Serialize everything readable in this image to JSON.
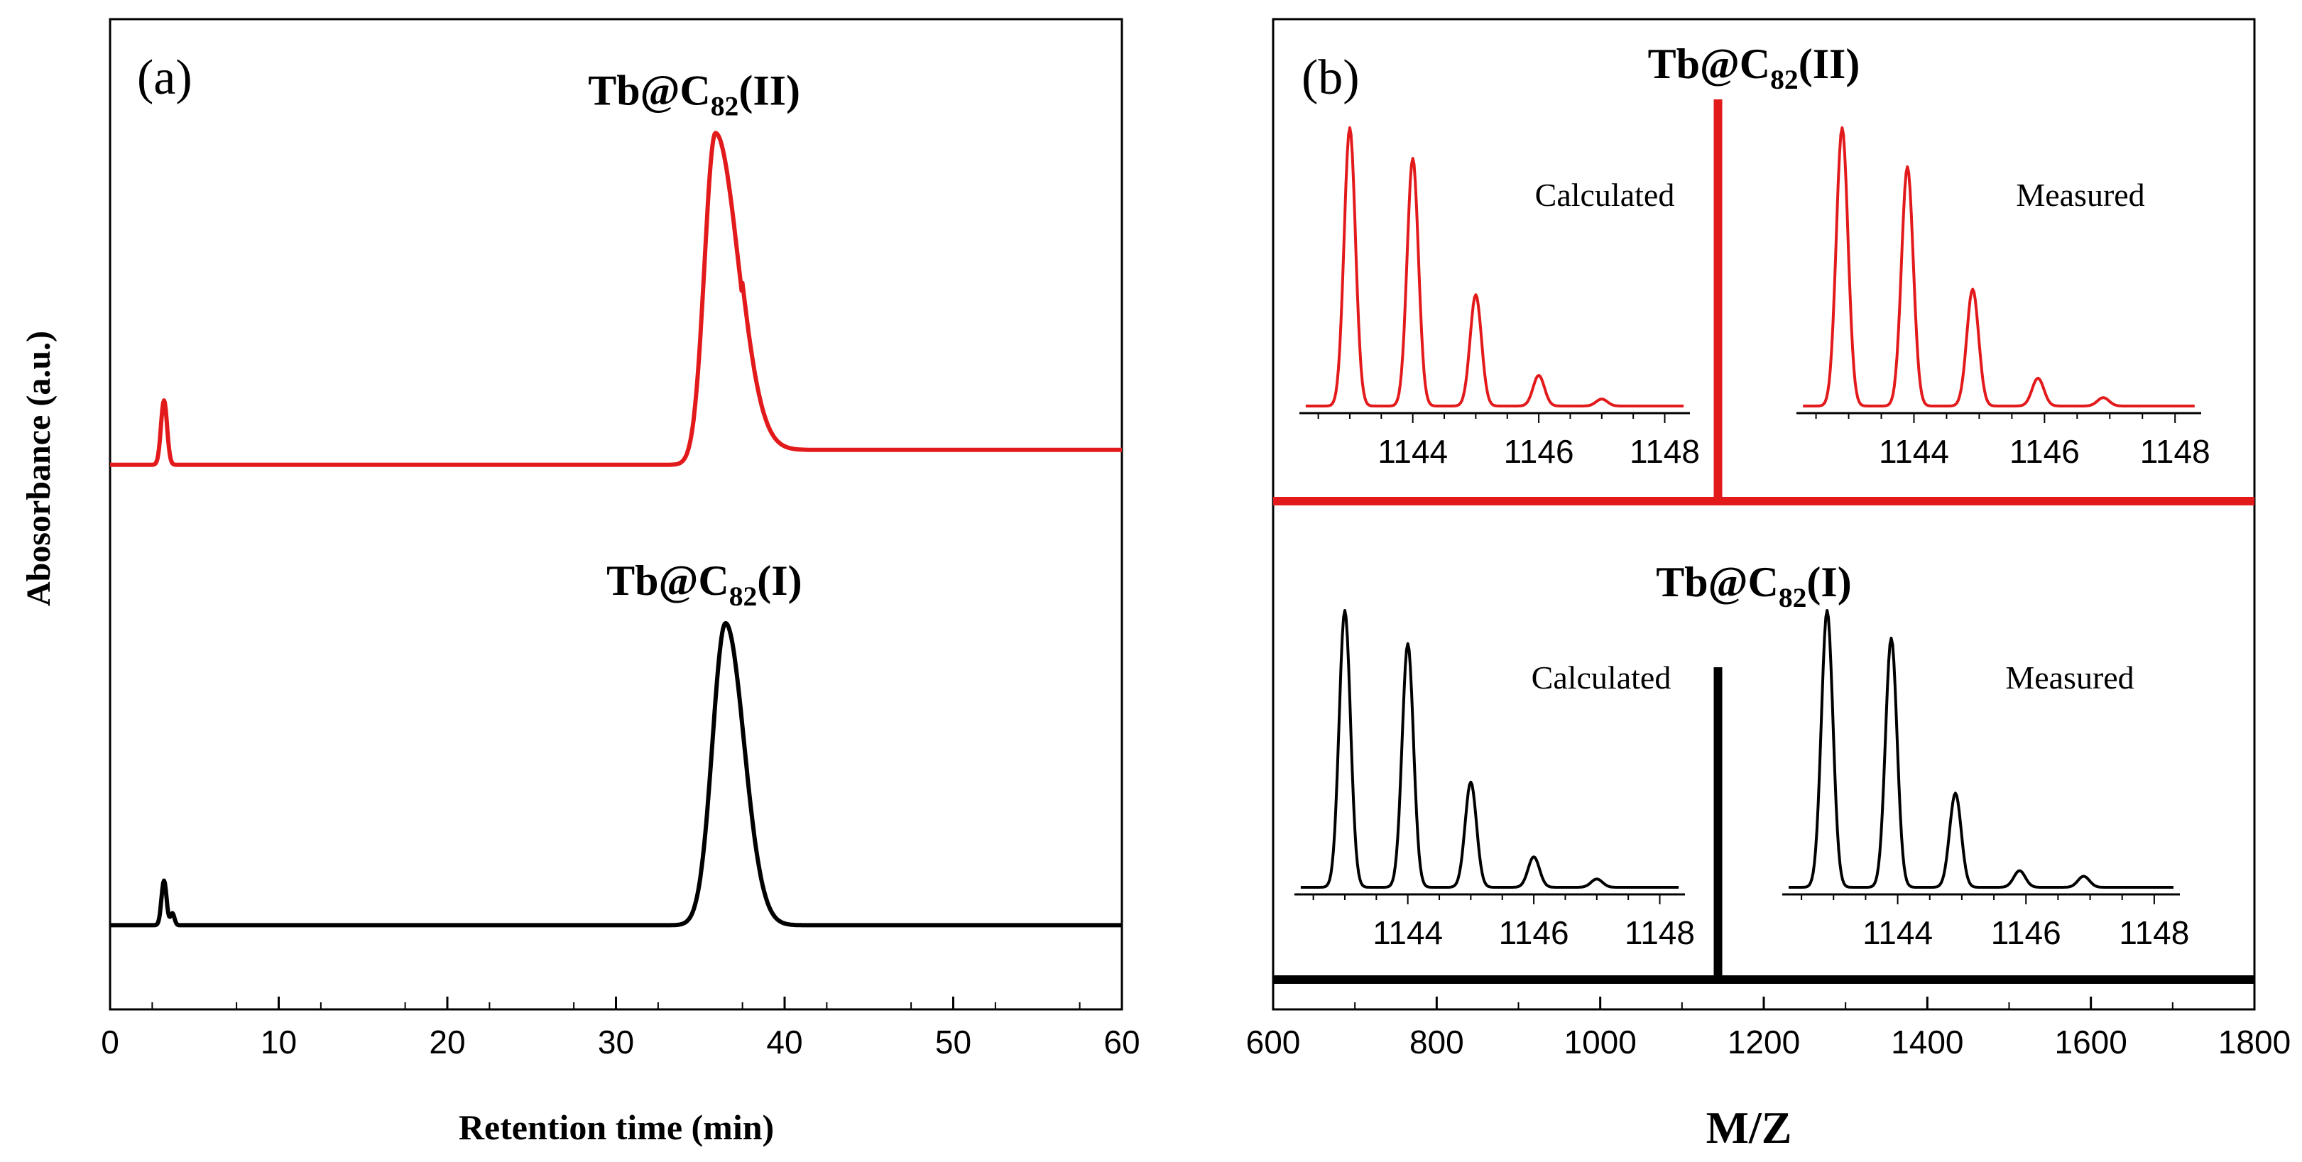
{
  "colors": {
    "red": "#e31a1c",
    "black": "#000000"
  },
  "chart_data": [
    {
      "panel": "(a)",
      "type": "line",
      "xlabel": "Retention time (min)",
      "ylabel": "Abosorbance (a.u.)",
      "xlim": [
        0,
        60
      ],
      "xticks": [
        0,
        10,
        20,
        30,
        40,
        50,
        60
      ],
      "ylim": [
        0,
        1
      ],
      "y_ticks_shown": false,
      "series": [
        {
          "name": "Tb@C82(II)",
          "label_main": "Tb@C",
          "label_sub": "82",
          "label_tail": "(II)",
          "color": "#e31a1c",
          "baseline": 0.55,
          "peaks": [
            {
              "x": 3.2,
              "height": 0.065,
              "width": 0.18
            },
            {
              "x": 35.9,
              "height": 0.335,
              "width": 0.65,
              "tail": 1.1
            }
          ],
          "step_after_peak": 0.015
        },
        {
          "name": "Tb@C82(I)",
          "label_main": "Tb@C",
          "label_sub": "82",
          "label_tail": "(I)",
          "color": "#000000",
          "baseline": 0.085,
          "peaks": [
            {
              "x": 3.2,
              "height": 0.045,
              "width": 0.15
            },
            {
              "x": 3.7,
              "height": 0.012,
              "width": 0.12
            },
            {
              "x": 36.5,
              "height": 0.305,
              "width": 0.78,
              "tail": 0.4
            }
          ],
          "step_after_peak": 0
        }
      ]
    },
    {
      "panel": "(b)",
      "type": "line",
      "xlabel": "M/Z",
      "xlim": [
        600,
        1800
      ],
      "xticks": [
        600,
        800,
        1000,
        1200,
        1400,
        1600,
        1800
      ],
      "y_ticks_shown": false,
      "series": [
        {
          "name": "Tb@C82(II)",
          "label_main": "Tb@C",
          "label_sub": "82",
          "label_tail": "(II)",
          "color": "#e31a1c",
          "peak_mz": 1144
        },
        {
          "name": "Tb@C82(I)",
          "label_main": "Tb@C",
          "label_sub": "82",
          "label_tail": "(I)",
          "color": "#000000",
          "peak_mz": 1144
        }
      ],
      "insets": [
        {
          "group": "Tb@C82(II)",
          "title": "Calculated",
          "color": "#e31a1c",
          "xlim": [
            1142.2,
            1148.4
          ],
          "xticks": [
            1144,
            1146,
            1148
          ],
          "peaks": [
            {
              "x": 1143.0,
              "y": 1.0
            },
            {
              "x": 1144.0,
              "y": 0.89
            },
            {
              "x": 1145.0,
              "y": 0.4
            },
            {
              "x": 1146.0,
              "y": 0.11
            },
            {
              "x": 1147.0,
              "y": 0.025
            }
          ]
        },
        {
          "group": "Tb@C82(II)",
          "title": "Measured",
          "color": "#e31a1c",
          "xlim": [
            1142.2,
            1148.4
          ],
          "xticks": [
            1144,
            1146,
            1148
          ],
          "peaks": [
            {
              "x": 1142.9,
              "y": 1.0
            },
            {
              "x": 1143.9,
              "y": 0.86
            },
            {
              "x": 1144.9,
              "y": 0.42
            },
            {
              "x": 1145.9,
              "y": 0.1
            },
            {
              "x": 1146.9,
              "y": 0.03
            }
          ]
        },
        {
          "group": "Tb@C82(I)",
          "title": "Calculated",
          "color": "#000000",
          "xlim": [
            1142.2,
            1148.4
          ],
          "xticks": [
            1144,
            1146,
            1148
          ],
          "peaks": [
            {
              "x": 1143.0,
              "y": 1.0
            },
            {
              "x": 1144.0,
              "y": 0.88
            },
            {
              "x": 1145.0,
              "y": 0.38
            },
            {
              "x": 1146.0,
              "y": 0.11
            },
            {
              "x": 1147.0,
              "y": 0.03
            }
          ]
        },
        {
          "group": "Tb@C82(I)",
          "title": "Measured",
          "color": "#000000",
          "xlim": [
            1142.2,
            1148.4
          ],
          "xticks": [
            1144,
            1146,
            1148
          ],
          "peaks": [
            {
              "x": 1142.9,
              "y": 1.0
            },
            {
              "x": 1143.9,
              "y": 0.9
            },
            {
              "x": 1144.9,
              "y": 0.34
            },
            {
              "x": 1145.9,
              "y": 0.06
            },
            {
              "x": 1146.9,
              "y": 0.04
            }
          ]
        }
      ]
    }
  ]
}
